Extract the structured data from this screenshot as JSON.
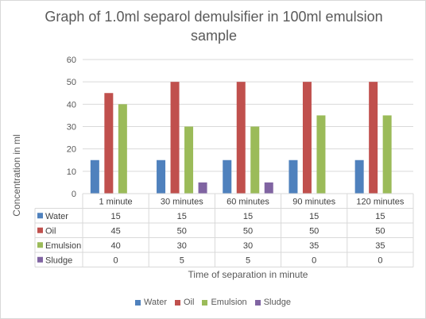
{
  "chart_data": {
    "type": "bar",
    "title": "Graph of 1.0ml separol demulsifier in 100ml emulsion sample",
    "xlabel": "Time of separation in minute",
    "ylabel": "Concentration in ml",
    "ylim": [
      0,
      60
    ],
    "yticks": [
      0,
      10,
      20,
      30,
      40,
      50,
      60
    ],
    "grid": true,
    "legend_position": "bottom",
    "data_table": true,
    "categories": [
      "1 minute",
      "30 minutes",
      "60 minutes",
      "90 minutes",
      "120 minutes"
    ],
    "series": [
      {
        "name": "Water",
        "color": "#4f81bd",
        "values": [
          15,
          15,
          15,
          15,
          15
        ]
      },
      {
        "name": "Oil",
        "color": "#c0504d",
        "values": [
          45,
          50,
          50,
          50,
          50
        ]
      },
      {
        "name": "Emulsion",
        "color": "#9bbb59",
        "values": [
          40,
          30,
          30,
          35,
          35
        ]
      },
      {
        "name": "Sludge",
        "color": "#8064a2",
        "values": [
          0,
          5,
          5,
          0,
          0
        ]
      }
    ]
  }
}
